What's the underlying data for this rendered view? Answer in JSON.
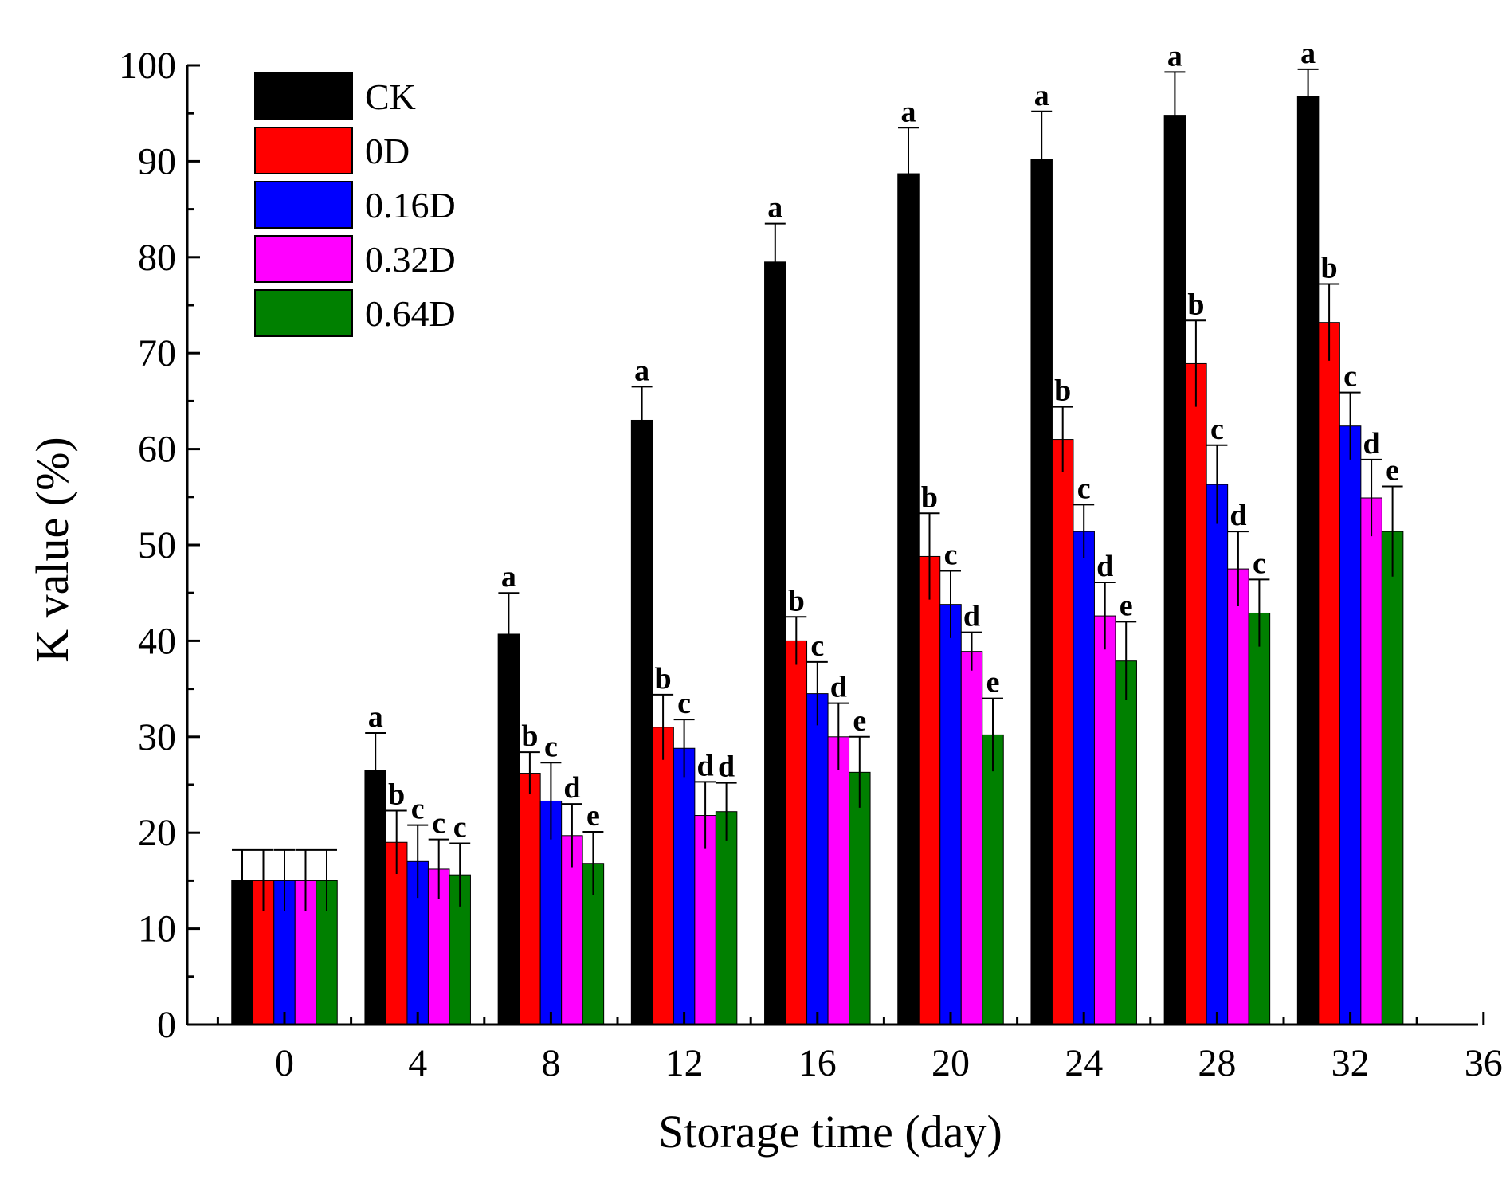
{
  "chart_data": {
    "type": "bar",
    "title": "",
    "xlabel": "Storage time (day)",
    "ylabel": "K value (%)",
    "ylim": [
      0,
      100
    ],
    "xlim": [
      -3,
      36
    ],
    "yticks": [
      "0",
      "10",
      "20",
      "30",
      "40",
      "50",
      "60",
      "70",
      "80",
      "90",
      "100"
    ],
    "xticks": [
      "0",
      "4",
      "8",
      "12",
      "16",
      "20",
      "24",
      "28",
      "32",
      "36"
    ],
    "x": [
      0,
      4,
      8,
      12,
      16,
      20,
      24,
      28,
      32
    ],
    "legend_position": "top-left",
    "series": [
      {
        "name": "CK",
        "color": "#000000",
        "values": [
          15.0,
          26.5,
          40.7,
          63.0,
          79.5,
          88.7,
          90.2,
          94.8,
          96.8
        ],
        "errors": [
          3.2,
          3.9,
          4.3,
          3.5,
          4.0,
          4.8,
          5.0,
          4.5,
          2.8
        ],
        "letters": [
          "",
          "a",
          "a",
          "a",
          "a",
          "a",
          "a",
          "a",
          "a"
        ]
      },
      {
        "name": "0D",
        "color": "#ff0000",
        "values": [
          15.0,
          19.0,
          26.2,
          31.0,
          40.0,
          48.8,
          61.0,
          68.9,
          73.2
        ],
        "errors": [
          3.2,
          3.3,
          2.2,
          3.4,
          2.5,
          4.5,
          3.4,
          4.5,
          4.0
        ],
        "letters": [
          "",
          "b",
          "b",
          "b",
          "b",
          "b",
          "b",
          "b",
          "b"
        ]
      },
      {
        "name": "0.16D",
        "color": "#0000ff",
        "values": [
          15.0,
          17.0,
          23.3,
          28.8,
          34.5,
          43.8,
          51.4,
          56.3,
          62.4
        ],
        "errors": [
          3.2,
          3.8,
          4.0,
          3.0,
          3.3,
          3.5,
          2.8,
          4.1,
          3.5
        ],
        "letters": [
          "",
          "c",
          "c",
          "c",
          "c",
          "c",
          "c",
          "c",
          "c"
        ]
      },
      {
        "name": "0.32D",
        "color": "#ff00ff",
        "values": [
          15.0,
          16.2,
          19.7,
          21.8,
          30.0,
          38.9,
          42.6,
          47.5,
          54.9
        ],
        "errors": [
          3.2,
          3.1,
          3.3,
          3.5,
          3.5,
          2.0,
          3.5,
          3.9,
          4.0
        ],
        "letters": [
          "",
          "c",
          "d",
          "d",
          "d",
          "d",
          "d",
          "d",
          "d"
        ]
      },
      {
        "name": "0.64D",
        "color": "#008000",
        "values": [
          15.0,
          15.6,
          16.8,
          22.2,
          26.3,
          30.2,
          37.9,
          42.9,
          51.4
        ],
        "errors": [
          3.2,
          3.3,
          3.3,
          3.0,
          3.7,
          3.8,
          4.1,
          3.5,
          4.7
        ],
        "letters": [
          "",
          "c",
          "e",
          "d",
          "e",
          "e",
          "e",
          "c",
          "e"
        ]
      }
    ]
  }
}
